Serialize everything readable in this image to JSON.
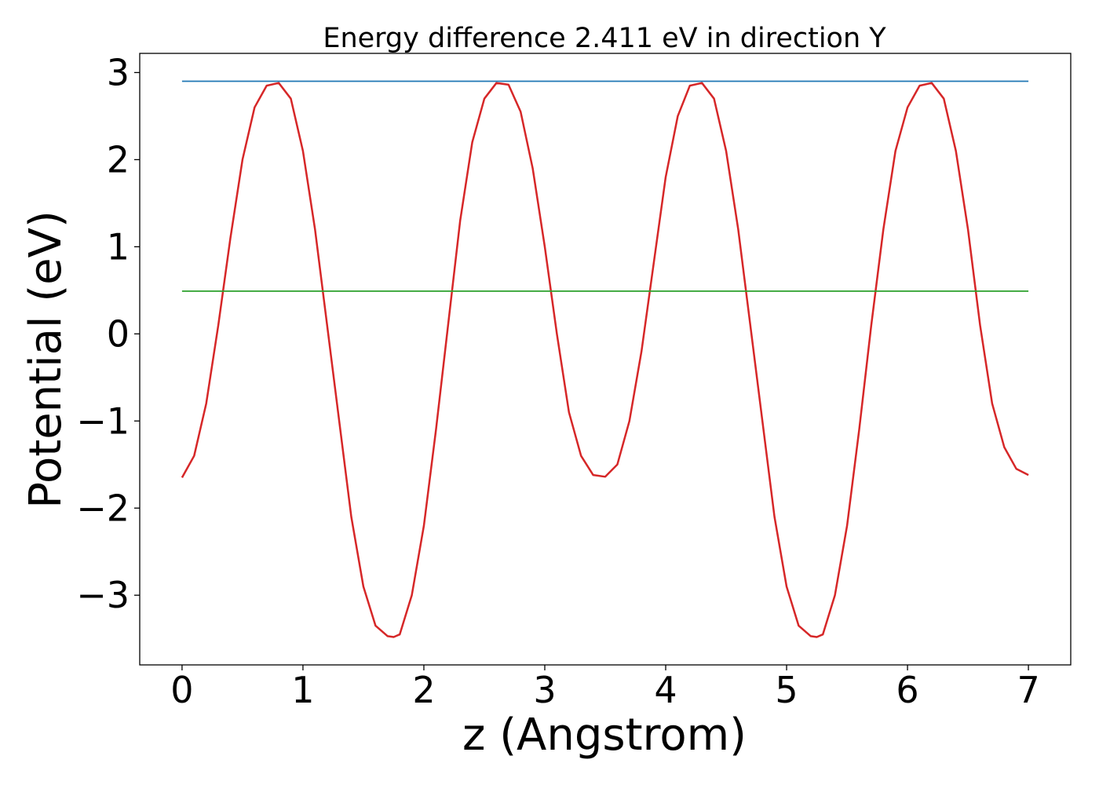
{
  "chart_data": {
    "type": "line",
    "title": "Energy difference 2.411 eV in direction Y",
    "xlabel": "z (Angstrom)",
    "ylabel": "Potential (eV)",
    "xlim": [
      -0.35,
      7.35
    ],
    "ylim": [
      -3.8,
      3.22
    ],
    "xticks": [
      0,
      1,
      2,
      3,
      4,
      5,
      6,
      7
    ],
    "xtick_labels": [
      "0",
      "1",
      "2",
      "3",
      "4",
      "5",
      "6",
      "7"
    ],
    "yticks": [
      -3,
      -2,
      -1,
      0,
      1,
      2,
      3
    ],
    "ytick_labels": [
      "−3",
      "−2",
      "−1",
      "0",
      "1",
      "2",
      "3"
    ],
    "grid": false,
    "legend": "none",
    "series": [
      {
        "color": "#d62728",
        "x": [
          0.0,
          0.1,
          0.2,
          0.3,
          0.4,
          0.5,
          0.6,
          0.7,
          0.8,
          0.9,
          1.0,
          1.1,
          1.2,
          1.3,
          1.4,
          1.5,
          1.6,
          1.7,
          1.75,
          1.8,
          1.9,
          2.0,
          2.1,
          2.2,
          2.3,
          2.4,
          2.5,
          2.6,
          2.7,
          2.8,
          2.9,
          3.0,
          3.1,
          3.2,
          3.3,
          3.4,
          3.5,
          3.6,
          3.7,
          3.8,
          3.9,
          4.0,
          4.1,
          4.2,
          4.3,
          4.4,
          4.5,
          4.6,
          4.7,
          4.8,
          4.9,
          5.0,
          5.1,
          5.2,
          5.25,
          5.3,
          5.4,
          5.5,
          5.6,
          5.7,
          5.8,
          5.9,
          6.0,
          6.1,
          6.2,
          6.3,
          6.4,
          6.5,
          6.6,
          6.7,
          6.8,
          6.9,
          7.0
        ],
        "y": [
          -1.65,
          -1.4,
          -0.8,
          0.1,
          1.1,
          2.0,
          2.6,
          2.85,
          2.88,
          2.7,
          2.1,
          1.2,
          0.1,
          -1.0,
          -2.1,
          -2.9,
          -3.35,
          -3.47,
          -3.48,
          -3.45,
          -3.0,
          -2.2,
          -1.1,
          0.1,
          1.3,
          2.2,
          2.7,
          2.88,
          2.86,
          2.55,
          1.9,
          1.0,
          0.0,
          -0.9,
          -1.4,
          -1.62,
          -1.64,
          -1.5,
          -1.0,
          -0.2,
          0.8,
          1.8,
          2.5,
          2.85,
          2.88,
          2.7,
          2.1,
          1.2,
          0.1,
          -1.0,
          -2.1,
          -2.9,
          -3.35,
          -3.47,
          -3.48,
          -3.45,
          -3.0,
          -2.2,
          -1.1,
          0.1,
          1.2,
          2.1,
          2.6,
          2.85,
          2.88,
          2.7,
          2.1,
          1.2,
          0.1,
          -0.8,
          -1.3,
          -1.55,
          -1.62
        ]
      },
      {
        "color": "#1f77b4",
        "x": [
          0.0,
          7.0
        ],
        "y": [
          2.9,
          2.9
        ]
      },
      {
        "color": "#2ca02c",
        "x": [
          0.0,
          7.0
        ],
        "y": [
          0.49,
          0.49
        ]
      }
    ]
  }
}
